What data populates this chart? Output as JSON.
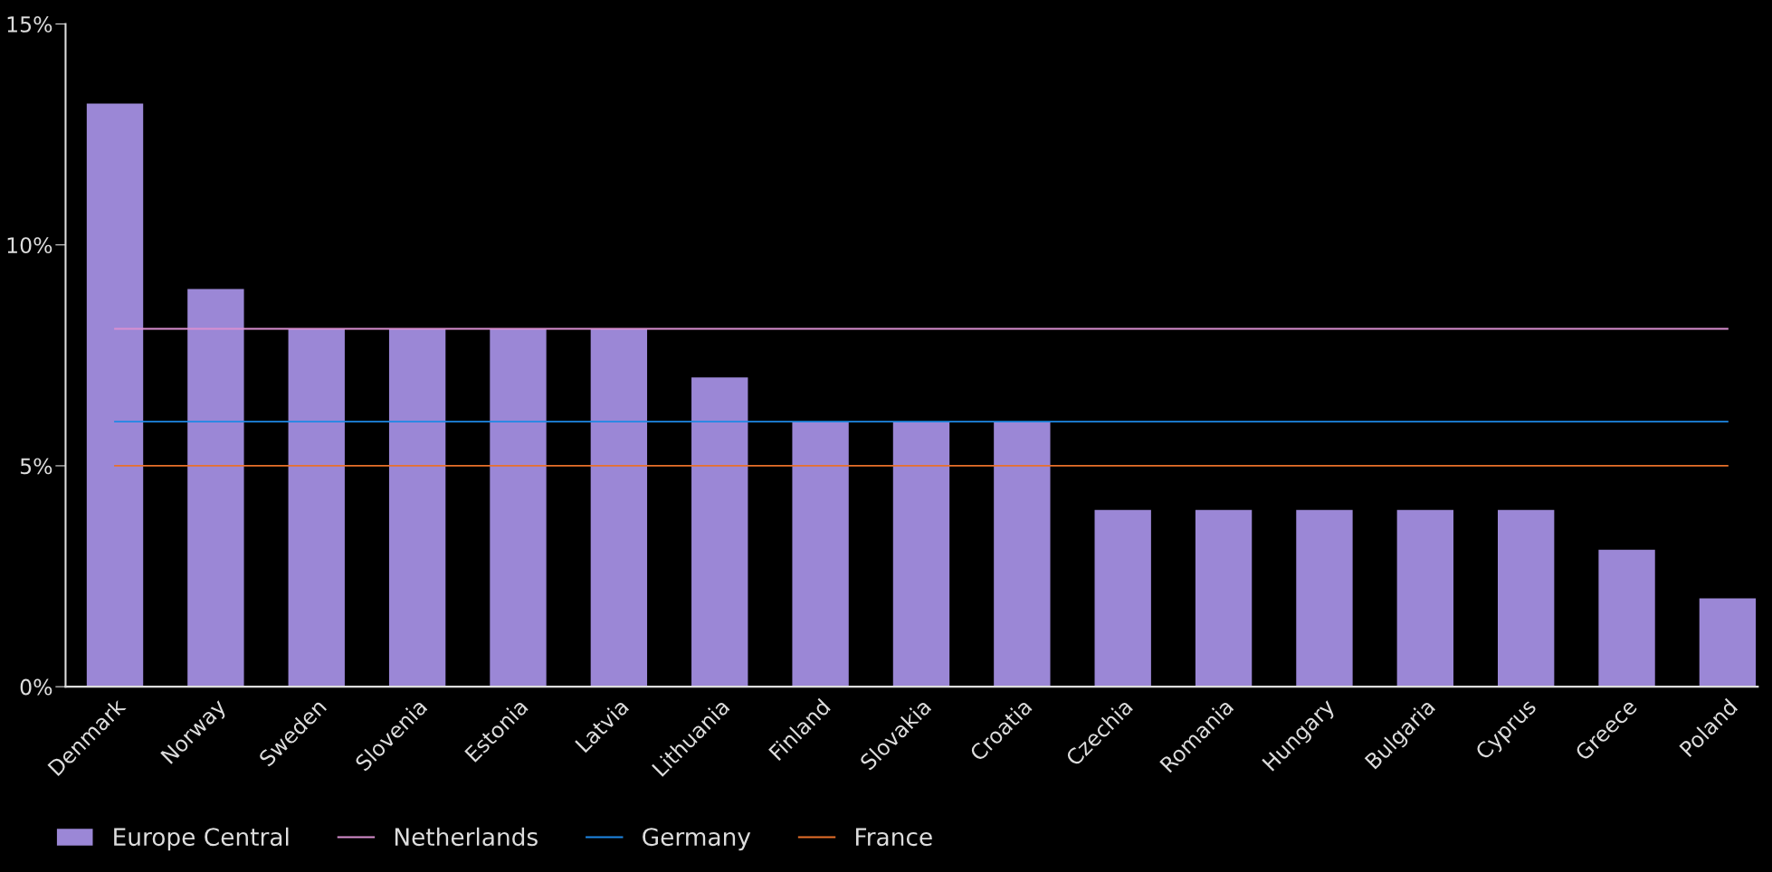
{
  "chart_data": {
    "type": "bar",
    "categories": [
      "Denmark",
      "Norway",
      "Sweden",
      "Slovenia",
      "Estonia",
      "Latvia",
      "Lithuania",
      "Finland",
      "Slovakia",
      "Croatia",
      "Czechia",
      "Romania",
      "Hungary",
      "Bulgaria",
      "Cyprus",
      "Greece",
      "Poland"
    ],
    "series": [
      {
        "name": "Europe Central",
        "color": "#9b87d6",
        "values": [
          13.2,
          9,
          8.1,
          8.1,
          8.1,
          8.1,
          7,
          6,
          6,
          6,
          4,
          4,
          4,
          4,
          4,
          3.1,
          2
        ]
      },
      {
        "name": "Netherlands",
        "type": "line",
        "color": "#d98fd0",
        "values": [
          8.1,
          8.1,
          8.1,
          8.1,
          8.1,
          8.1,
          8.1,
          8.1,
          8.1,
          8.1,
          8.1,
          8.1,
          8.1,
          8.1,
          8.1,
          8.1,
          8.1
        ]
      },
      {
        "name": "Germany",
        "type": "line",
        "color": "#1e88e5",
        "values": [
          6,
          6,
          6,
          6,
          6,
          6,
          6,
          6,
          6,
          6,
          6,
          6,
          6,
          6,
          6,
          6,
          6
        ]
      },
      {
        "name": "France",
        "type": "line",
        "color": "#e8702a",
        "values": [
          5,
          5,
          5,
          5,
          5,
          5,
          5,
          5,
          5,
          5,
          5,
          5,
          5,
          5,
          5,
          5,
          5
        ]
      }
    ],
    "ylim": [
      0,
      15
    ],
    "yticks": [
      {
        "value": 0,
        "label": "0%"
      },
      {
        "value": 5,
        "label": "5%"
      },
      {
        "value": 10,
        "label": "10%"
      },
      {
        "value": 15,
        "label": "15%"
      }
    ],
    "grid": false,
    "legend": "bottom left"
  }
}
